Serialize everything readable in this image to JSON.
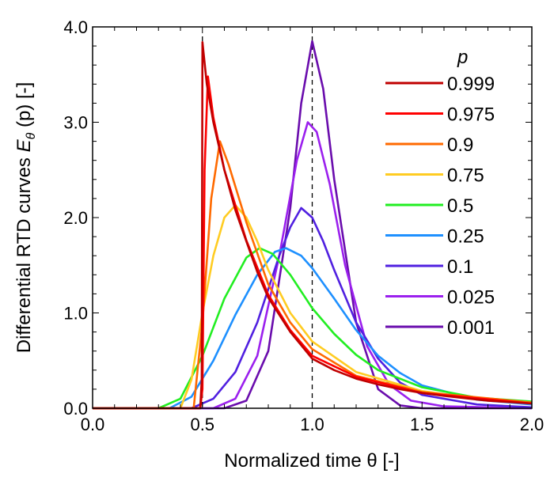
{
  "chart_data": {
    "type": "line",
    "title": "",
    "xlabel": "Normalized time θ [-]",
    "ylabel_main": "Differential RTD curves ",
    "ylabel_symbol": "E",
    "ylabel_sub": "θ",
    "ylabel_tail": " (p) [-]",
    "xlim": [
      0,
      2
    ],
    "ylim": [
      0,
      4
    ],
    "xticks": [
      "0.0",
      "0.5",
      "1.0",
      "1.5",
      "2.0"
    ],
    "yticks": [
      "0.0",
      "1.0",
      "2.0",
      "3.0",
      "4.0"
    ],
    "grid": false,
    "legend_title": "p",
    "legend_position": "top-right",
    "reference_lines_x": [
      0.5,
      1.0
    ],
    "series": [
      {
        "name": "0.999",
        "color": "#c00000",
        "points": [
          [
            0,
            0
          ],
          [
            0.49,
            0
          ],
          [
            0.497,
            0.3
          ],
          [
            0.5,
            3.84
          ],
          [
            0.52,
            3.4
          ],
          [
            0.55,
            3.0
          ],
          [
            0.6,
            2.5
          ],
          [
            0.65,
            2.08
          ],
          [
            0.7,
            1.75
          ],
          [
            0.75,
            1.43
          ],
          [
            0.8,
            1.16
          ],
          [
            0.9,
            0.8
          ],
          [
            1.0,
            0.52
          ],
          [
            1.1,
            0.4
          ],
          [
            1.2,
            0.31
          ],
          [
            1.3,
            0.25
          ],
          [
            1.4,
            0.2
          ],
          [
            1.5,
            0.16
          ],
          [
            1.6,
            0.13
          ],
          [
            1.8,
            0.08
          ],
          [
            2.0,
            0.05
          ]
        ]
      },
      {
        "name": "0.975",
        "color": "#ff0000",
        "points": [
          [
            0,
            0
          ],
          [
            0.49,
            0
          ],
          [
            0.5,
            0.2
          ],
          [
            0.51,
            2.5
          ],
          [
            0.525,
            3.48
          ],
          [
            0.55,
            3.05
          ],
          [
            0.6,
            2.5
          ],
          [
            0.7,
            1.76
          ],
          [
            0.8,
            1.19
          ],
          [
            0.9,
            0.82
          ],
          [
            1.0,
            0.55
          ],
          [
            1.2,
            0.33
          ],
          [
            1.5,
            0.16
          ],
          [
            2.0,
            0.05
          ]
        ]
      },
      {
        "name": "0.9",
        "color": "#ff6a00",
        "points": [
          [
            0,
            0
          ],
          [
            0.46,
            0
          ],
          [
            0.5,
            0.9
          ],
          [
            0.54,
            2.2
          ],
          [
            0.58,
            2.8
          ],
          [
            0.62,
            2.55
          ],
          [
            0.7,
            1.95
          ],
          [
            0.8,
            1.3
          ],
          [
            0.9,
            0.9
          ],
          [
            1.0,
            0.62
          ],
          [
            1.2,
            0.34
          ],
          [
            1.5,
            0.17
          ],
          [
            2.0,
            0.06
          ]
        ]
      },
      {
        "name": "0.75",
        "color": "#ffcc22",
        "points": [
          [
            0,
            0
          ],
          [
            0.4,
            0
          ],
          [
            0.45,
            0.3
          ],
          [
            0.5,
            1.0
          ],
          [
            0.55,
            1.6
          ],
          [
            0.6,
            2.0
          ],
          [
            0.65,
            2.13
          ],
          [
            0.7,
            2.0
          ],
          [
            0.75,
            1.75
          ],
          [
            0.8,
            1.45
          ],
          [
            0.9,
            1.0
          ],
          [
            1.0,
            0.7
          ],
          [
            1.2,
            0.38
          ],
          [
            1.5,
            0.18
          ],
          [
            1.75,
            0.1
          ],
          [
            2.0,
            0.06
          ]
        ]
      },
      {
        "name": "0.5",
        "color": "#22ee22",
        "points": [
          [
            0,
            0
          ],
          [
            0.3,
            0
          ],
          [
            0.4,
            0.1
          ],
          [
            0.5,
            0.55
          ],
          [
            0.6,
            1.15
          ],
          [
            0.7,
            1.58
          ],
          [
            0.76,
            1.68
          ],
          [
            0.82,
            1.62
          ],
          [
            0.9,
            1.4
          ],
          [
            1.0,
            1.05
          ],
          [
            1.1,
            0.78
          ],
          [
            1.2,
            0.56
          ],
          [
            1.3,
            0.4
          ],
          [
            1.5,
            0.22
          ],
          [
            1.75,
            0.11
          ],
          [
            2.0,
            0.07
          ]
        ]
      },
      {
        "name": "0.25",
        "color": "#1e90ff",
        "points": [
          [
            0,
            0
          ],
          [
            0.35,
            0
          ],
          [
            0.45,
            0.12
          ],
          [
            0.55,
            0.5
          ],
          [
            0.65,
            0.98
          ],
          [
            0.75,
            1.4
          ],
          [
            0.83,
            1.64
          ],
          [
            0.88,
            1.68
          ],
          [
            0.95,
            1.6
          ],
          [
            1.0,
            1.47
          ],
          [
            1.1,
            1.15
          ],
          [
            1.2,
            0.82
          ],
          [
            1.3,
            0.55
          ],
          [
            1.4,
            0.37
          ],
          [
            1.5,
            0.24
          ],
          [
            1.75,
            0.09
          ],
          [
            2.0,
            0.04
          ]
        ]
      },
      {
        "name": "0.1",
        "color": "#5020e0",
        "points": [
          [
            0,
            0
          ],
          [
            0.45,
            0
          ],
          [
            0.55,
            0.1
          ],
          [
            0.65,
            0.38
          ],
          [
            0.75,
            0.9
          ],
          [
            0.85,
            1.6
          ],
          [
            0.9,
            1.9
          ],
          [
            0.95,
            2.1
          ],
          [
            1.0,
            2.0
          ],
          [
            1.05,
            1.75
          ],
          [
            1.1,
            1.45
          ],
          [
            1.2,
            0.9
          ],
          [
            1.3,
            0.52
          ],
          [
            1.4,
            0.27
          ],
          [
            1.5,
            0.14
          ],
          [
            1.75,
            0.04
          ],
          [
            2.0,
            0.01
          ]
        ]
      },
      {
        "name": "0.025",
        "color": "#9b20ee",
        "points": [
          [
            0,
            0
          ],
          [
            0.55,
            0
          ],
          [
            0.65,
            0.1
          ],
          [
            0.75,
            0.55
          ],
          [
            0.85,
            1.6
          ],
          [
            0.93,
            2.6
          ],
          [
            0.98,
            3.0
          ],
          [
            1.02,
            2.9
          ],
          [
            1.08,
            2.35
          ],
          [
            1.15,
            1.5
          ],
          [
            1.25,
            0.65
          ],
          [
            1.35,
            0.25
          ],
          [
            1.45,
            0.08
          ],
          [
            1.6,
            0.02
          ],
          [
            2.0,
            0
          ]
        ]
      },
      {
        "name": "0.001",
        "color": "#6a0dad",
        "points": [
          [
            0,
            0
          ],
          [
            0.6,
            0
          ],
          [
            0.7,
            0.08
          ],
          [
            0.8,
            0.6
          ],
          [
            0.9,
            2.1
          ],
          [
            0.95,
            3.2
          ],
          [
            1.0,
            3.85
          ],
          [
            1.05,
            3.35
          ],
          [
            1.1,
            2.4
          ],
          [
            1.2,
            0.9
          ],
          [
            1.3,
            0.2
          ],
          [
            1.4,
            0.03
          ],
          [
            1.5,
            0
          ],
          [
            2.0,
            0
          ]
        ]
      }
    ]
  }
}
